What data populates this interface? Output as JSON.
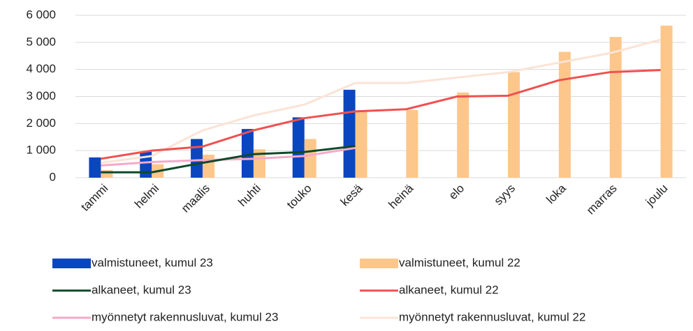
{
  "chart_data": {
    "type": "combo",
    "categories": [
      "tammi",
      "helmi",
      "maalis",
      "huhti",
      "touko",
      "kesä",
      "heinä",
      "elo",
      "syys",
      "loka",
      "marras",
      "joulu"
    ],
    "series": [
      {
        "name": "valmistuneet, kumul 23",
        "type": "bar",
        "color": "#0a46c0",
        "values": [
          750,
          960,
          1430,
          1800,
          2230,
          3250,
          null,
          null,
          null,
          null,
          null,
          null
        ]
      },
      {
        "name": "valmistuneet, kumul 22",
        "type": "bar",
        "color": "#fdc68a",
        "values": [
          280,
          500,
          850,
          1050,
          1430,
          2450,
          2500,
          3150,
          3900,
          4650,
          5200,
          5620
        ]
      },
      {
        "name": "alkaneet, kumul 23",
        "type": "line",
        "color": "#0d4a2a",
        "values": [
          200,
          200,
          550,
          870,
          950,
          1170,
          null,
          null,
          null,
          null,
          null,
          null
        ]
      },
      {
        "name": "alkaneet, kumul 22",
        "type": "line",
        "color": "#f05050",
        "values": [
          700,
          1000,
          1150,
          1750,
          2200,
          2450,
          2530,
          3000,
          3030,
          3600,
          3900,
          3980
        ]
      },
      {
        "name": "myönnetyt rakennusluvat, kumul 23",
        "type": "line",
        "color": "#f6a8c8",
        "values": [
          450,
          580,
          650,
          700,
          800,
          1100,
          null,
          null,
          null,
          null,
          null,
          null
        ]
      },
      {
        "name": "myönnetyt rakennusluvat, kumul 22",
        "type": "line",
        "color": "#fbe3d6",
        "values": [
          550,
          800,
          1750,
          2300,
          2700,
          3500,
          3500,
          3700,
          3900,
          4250,
          4600,
          5100
        ]
      }
    ],
    "ylim": [
      0,
      6000
    ],
    "yticks": [
      0,
      {
        "value": 1000,
        "label": "1 000"
      },
      {
        "value": 2000,
        "label": "2 000"
      },
      {
        "value": 3000,
        "label": "3 000"
      },
      {
        "value": 4000,
        "label": "4 000"
      },
      {
        "value": 5000,
        "label": "5 000"
      },
      {
        "value": 6000,
        "label": "6 000"
      }
    ],
    "grid": true
  }
}
